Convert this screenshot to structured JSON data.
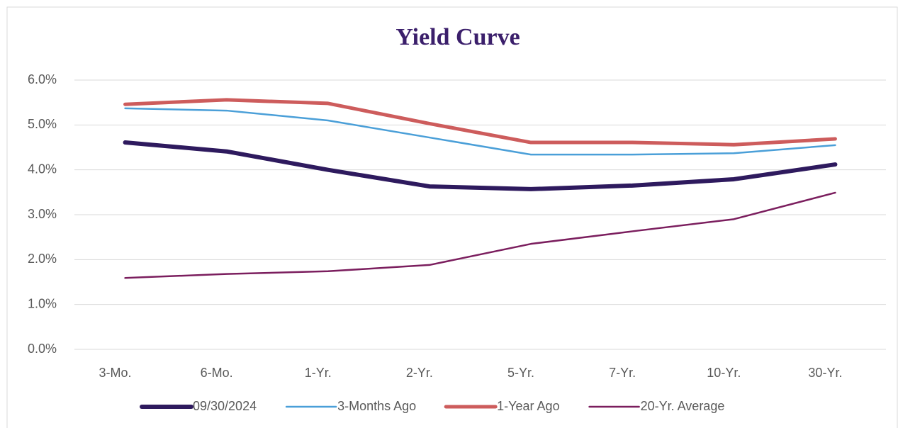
{
  "chart_data": {
    "type": "line",
    "title": "Yield Curve",
    "categories": [
      "3-Mo.",
      "6-Mo.",
      "1-Yr.",
      "2-Yr.",
      "5-Yr.",
      "7-Yr.",
      "10-Yr.",
      "30-Yr."
    ],
    "series": [
      {
        "name": "09/30/2024",
        "color": "#2e1a5e",
        "width": 6,
        "values": [
          4.61,
          4.41,
          4.0,
          3.63,
          3.57,
          3.65,
          3.79,
          4.12
        ]
      },
      {
        "name": "3-Months Ago",
        "color": "#4a9fd8",
        "width": 2.5,
        "values": [
          5.37,
          5.32,
          5.1,
          4.72,
          4.34,
          4.34,
          4.37,
          4.55
        ]
      },
      {
        "name": "1-Year Ago",
        "color": "#cd5c5c",
        "width": 5,
        "values": [
          5.46,
          5.56,
          5.48,
          5.03,
          4.61,
          4.61,
          4.56,
          4.69
        ]
      },
      {
        "name": "20-Yr. Average",
        "color": "#7b1e5e",
        "width": 2.5,
        "values": [
          1.59,
          1.68,
          1.74,
          1.88,
          2.35,
          2.63,
          2.9,
          3.49
        ]
      }
    ],
    "ylim": [
      0,
      6
    ],
    "yticks": [
      {
        "value": 0,
        "label": "0.0%"
      },
      {
        "value": 1,
        "label": "1.0%"
      },
      {
        "value": 2,
        "label": "2.0%"
      },
      {
        "value": 3,
        "label": "3.0%"
      },
      {
        "value": 4,
        "label": "4.0%"
      },
      {
        "value": 5,
        "label": "5.0%"
      },
      {
        "value": 6,
        "label": "6.0%"
      }
    ],
    "grid": true,
    "legend": "bottom"
  }
}
